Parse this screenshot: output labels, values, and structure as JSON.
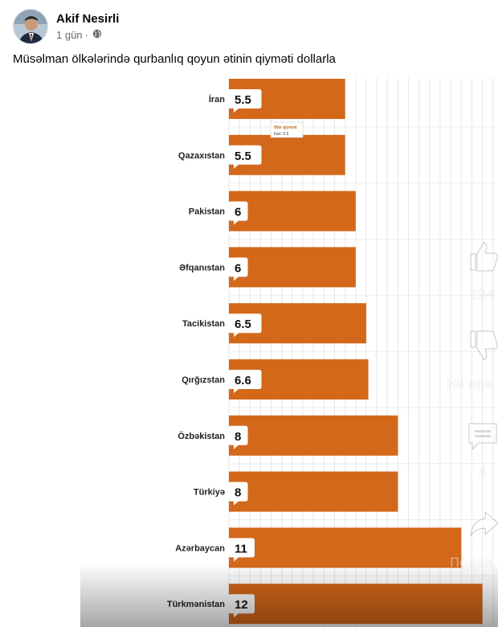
{
  "post": {
    "author_name": "Akif Nesirli",
    "time": "1 gün",
    "separator": "·",
    "privacy_icon": "globe-icon",
    "text": "Müsəlman ölkələrində qurbanlıq qoyun ətinin qiyməti dollarla"
  },
  "chart_data": {
    "type": "bar",
    "orientation": "horizontal",
    "categories": [
      "İran",
      "Qazaxıstan",
      "Pakistan",
      "Əfqanıstan",
      "Tacikistan",
      "Qırğızstan",
      "Özbəkistan",
      "Türkiyə",
      "Azərbaycan",
      "Türkmənistan"
    ],
    "values": [
      5.5,
      5.5,
      6,
      6,
      6.5,
      6.6,
      8,
      8,
      11,
      12
    ],
    "value_labels": [
      "5.5",
      "5.5",
      "6",
      "6",
      "6.5",
      "6.6",
      "8",
      "8",
      "11",
      "12"
    ],
    "bar_color": "#d4681a",
    "grid": true,
    "tooltip": {
      "title": "Ətin qiyməti",
      "body": "İran: 5.5"
    }
  },
  "video_overlay": {
    "like_count": "124",
    "dislike_label": "Не нра",
    "comment_count": "4",
    "share_label": "Подел",
    "icons": [
      "thumbs-up-icon",
      "thumbs-down-icon",
      "comment-icon",
      "share-icon"
    ]
  }
}
